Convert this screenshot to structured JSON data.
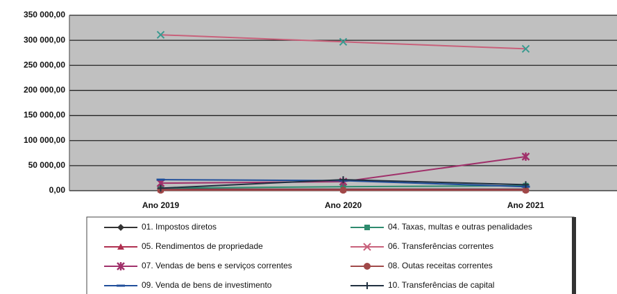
{
  "chart_data": {
    "type": "line",
    "categories": [
      "Ano 2019",
      "Ano 2020",
      "Ano 2021"
    ],
    "ylim": [
      0,
      350000
    ],
    "yticks": [
      {
        "value": 0,
        "label": "0,00"
      },
      {
        "value": 50000,
        "label": "50 000,00"
      },
      {
        "value": 100000,
        "label": "100 000,00"
      },
      {
        "value": 150000,
        "label": "150 000,00"
      },
      {
        "value": 200000,
        "label": "200 000,00"
      },
      {
        "value": 250000,
        "label": "250 000,00"
      },
      {
        "value": 300000,
        "label": "300 000,00"
      },
      {
        "value": 350000,
        "label": "350 000,00"
      }
    ],
    "grid": true,
    "series": [
      {
        "name": "01. Impostos diretos",
        "color": "#333333",
        "marker": "diamond",
        "values": [
          3000,
          3000,
          3000
        ]
      },
      {
        "name": "04. Taxas, multas e outras penalidades",
        "color": "#2e8b6e",
        "marker": "square",
        "values": [
          5000,
          8000,
          10000
        ]
      },
      {
        "name": "05. Rendimentos de propriedade",
        "color": "#b03050",
        "marker": "triangle",
        "values": [
          2000,
          2000,
          2000
        ]
      },
      {
        "name": "06. Transferências correntes",
        "color": "#c8607a",
        "marker": "x",
        "values": [
          311000,
          297000,
          283000
        ]
      },
      {
        "name": "07. Vendas de bens e serviços correntes",
        "color": "#a0306a",
        "marker": "star",
        "values": [
          15000,
          18000,
          68000
        ]
      },
      {
        "name": "08. Outas receitas correntes",
        "color": "#a04848",
        "marker": "circle",
        "values": [
          1000,
          1000,
          1000
        ]
      },
      {
        "name": "09. Venda de bens de investimento",
        "color": "#1f4e9a",
        "marker": "dash",
        "values": [
          22000,
          20000,
          8000
        ]
      },
      {
        "name": "10. Transferências de capital",
        "color": "#203040",
        "marker": "plus",
        "values": [
          5000,
          22000,
          12000
        ]
      }
    ]
  }
}
